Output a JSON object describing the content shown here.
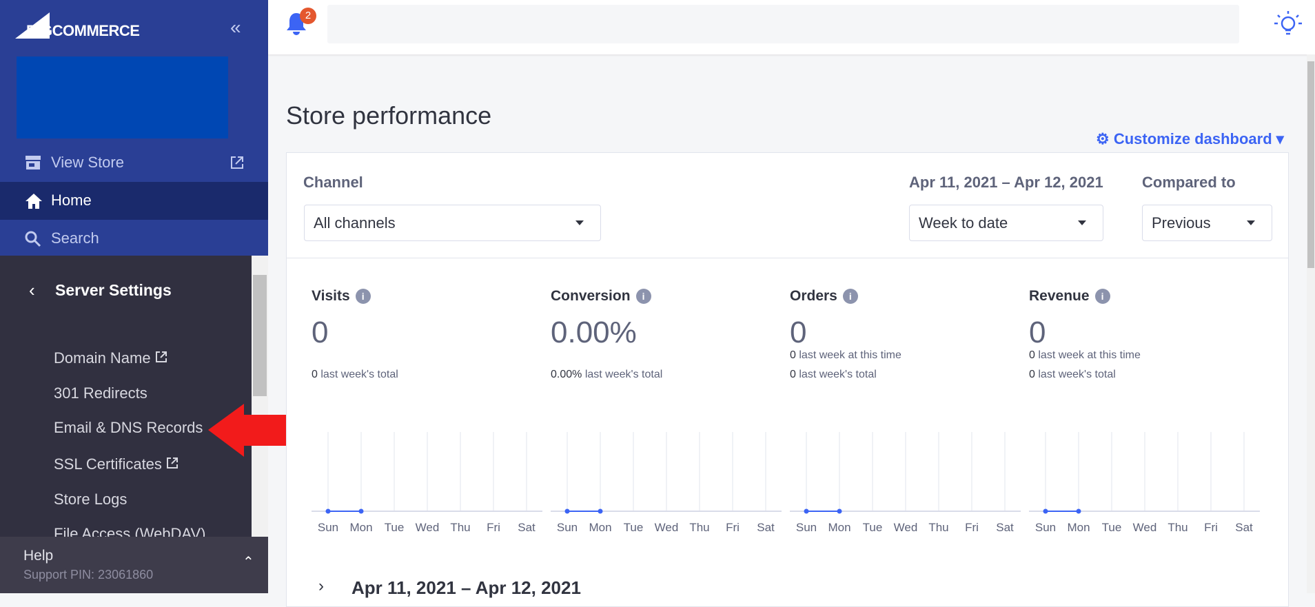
{
  "sidebar": {
    "brand": "BIGCOMMERCE",
    "nav": [
      "View Store",
      "Home",
      "Search"
    ],
    "section": "Server Settings",
    "items": [
      "Domain Name",
      "301 Redirects",
      "Email & DNS Records",
      "SSL Certificates",
      "Store Logs",
      "File Access (WebDAV)"
    ],
    "help": {
      "title": "Help",
      "pin": "Support PIN: 23061860"
    }
  },
  "topbar": {
    "notifications": 2
  },
  "dashboard": {
    "title": "Store performance",
    "customize": "Customize dashboard",
    "channel": {
      "label": "Channel",
      "value": "All channels"
    },
    "date_range": {
      "label": "Apr 11, 2021 – Apr 12, 2021",
      "value": "Week to date"
    },
    "compare": {
      "label": "Compared to",
      "value": "Previous"
    },
    "days": [
      "Sun",
      "Mon",
      "Tue",
      "Wed",
      "Thu",
      "Fri",
      "Sat"
    ],
    "metrics": [
      {
        "name": "Visits",
        "value": "0",
        "notes": [
          {
            "value": "0",
            "text": "last week's total"
          }
        ],
        "series": [
          0,
          0
        ]
      },
      {
        "name": "Conversion",
        "value": "0.00%",
        "notes": [
          {
            "value": "0.00%",
            "text": "last week's total"
          }
        ],
        "series": [
          0,
          0
        ]
      },
      {
        "name": "Orders",
        "value": "0",
        "notes": [
          {
            "value": "0",
            "text": "last week at this time"
          },
          {
            "value": "0",
            "text": "last week's total"
          }
        ],
        "series": [
          0,
          0
        ]
      },
      {
        "name": "Revenue",
        "value": "0",
        "notes": [
          {
            "value": "0",
            "text": "last week at this time"
          },
          {
            "value": "0",
            "text": "last week's total"
          }
        ],
        "series": [
          0,
          0
        ]
      }
    ],
    "footer_range": "Apr 11, 2021 – Apr 12, 2021"
  }
}
